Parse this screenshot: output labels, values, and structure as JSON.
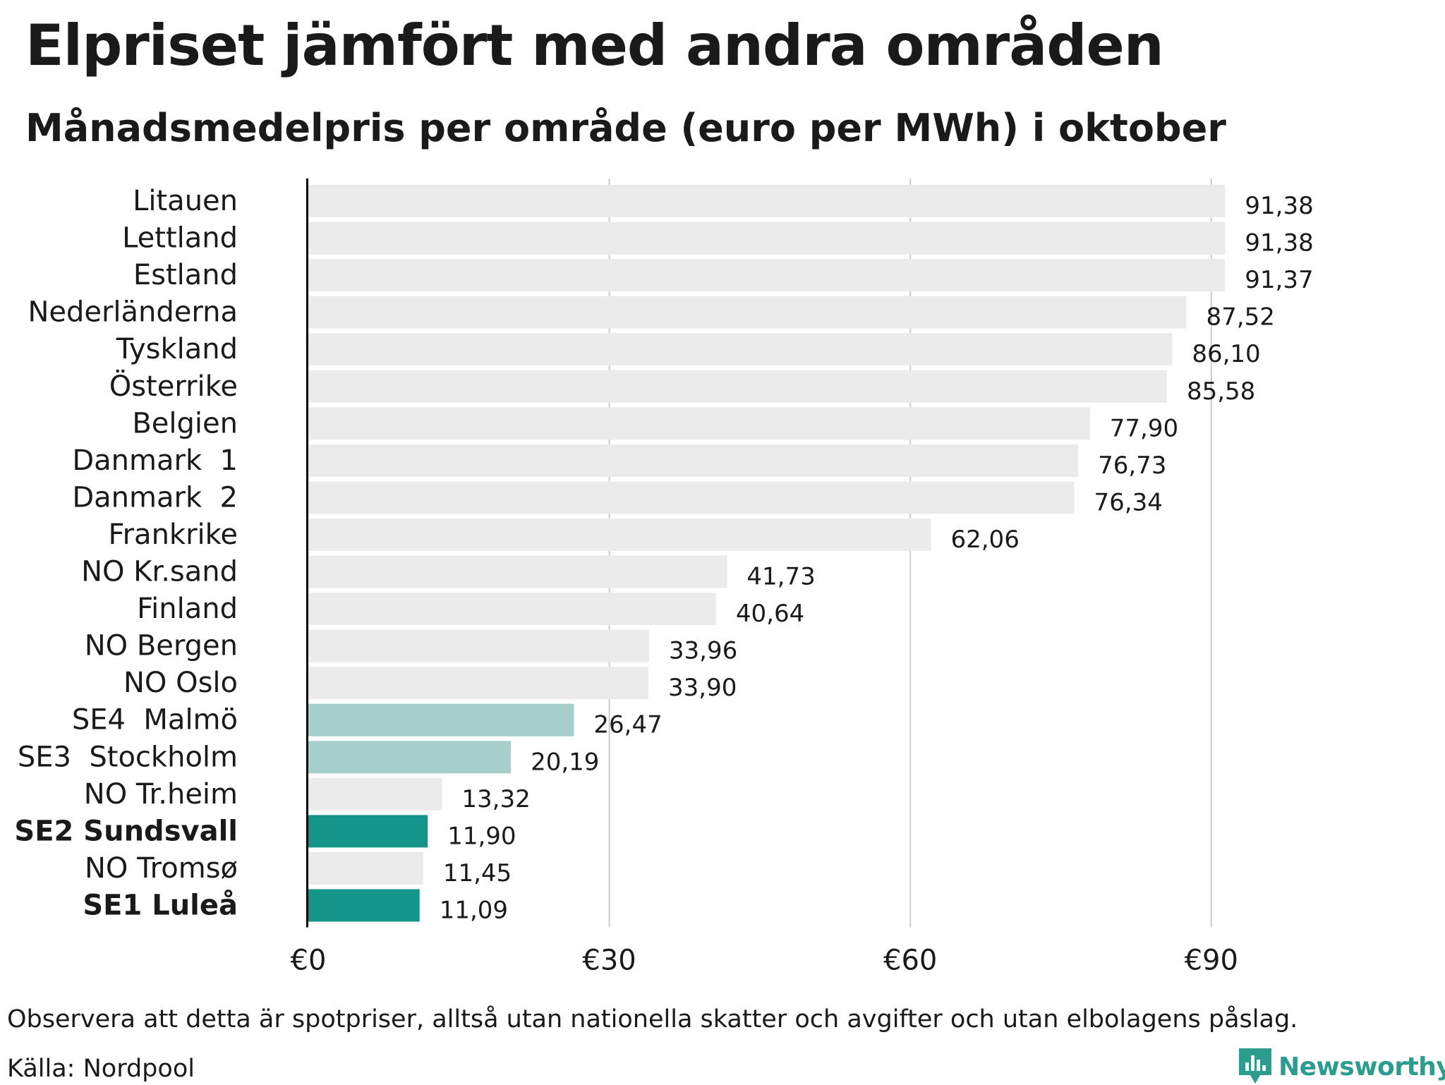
{
  "chart_data": {
    "type": "bar",
    "orientation": "horizontal",
    "title": "Elpriset jämfört med andra områden",
    "subtitle": "Månadsmedelpris per område (euro per MWh) i oktober",
    "categories": [
      "Litauen",
      "Lettland",
      "Estland",
      "Nederländerna",
      "Tyskland",
      "Österrike",
      "Belgien",
      "Danmark  1",
      "Danmark  2",
      "Frankrike",
      "NO Kr.sand",
      "Finland",
      "NO Bergen",
      "NO Oslo",
      "SE4  Malmö",
      "SE3  Stockholm",
      "NO Tr.heim",
      "SE2 Sundsvall",
      "NO Tromsø",
      "SE1 Luleå"
    ],
    "values": [
      91.38,
      91.38,
      91.37,
      87.52,
      86.1,
      85.58,
      77.9,
      76.73,
      76.34,
      62.06,
      41.73,
      40.64,
      33.96,
      33.9,
      26.47,
      20.19,
      13.32,
      11.9,
      11.45,
      11.09
    ],
    "value_labels": [
      "91,38",
      "91,38",
      "91,37",
      "87,52",
      "86,10",
      "85,58",
      "77,90",
      "76,73",
      "76,34",
      "62,06",
      "41,73",
      "40,64",
      "33,96",
      "33,90",
      "26,47",
      "20,19",
      "13,32",
      "11,90",
      "11,45",
      "11,09"
    ],
    "highlight": [
      "none",
      "none",
      "none",
      "none",
      "none",
      "none",
      "none",
      "none",
      "none",
      "none",
      "none",
      "none",
      "none",
      "none",
      "light",
      "light",
      "none",
      "dark",
      "none",
      "dark"
    ],
    "bold_labels": [
      false,
      false,
      false,
      false,
      false,
      false,
      false,
      false,
      false,
      false,
      false,
      false,
      false,
      false,
      false,
      false,
      false,
      true,
      false,
      true
    ],
    "xlim": [
      0,
      100
    ],
    "xticks": [
      0,
      30,
      60,
      90
    ],
    "xtick_labels": [
      "€0",
      "€30",
      "€60",
      "€90"
    ],
    "grid": "vertical",
    "colors": {
      "default": "#ebebeb",
      "light": "#a6cfc9",
      "dark": "#15958a",
      "grid": "#cccccc",
      "axis": "#000000"
    }
  },
  "note": "Observera att detta är spotpriser, alltså utan nationella skatter och avgifter och utan elbolagens påslag.",
  "source": "Källa: Nordpool",
  "brand": {
    "name": "Newsworthy",
    "icon": "newsworthy-logo-icon",
    "color": "#2c9c8e"
  }
}
